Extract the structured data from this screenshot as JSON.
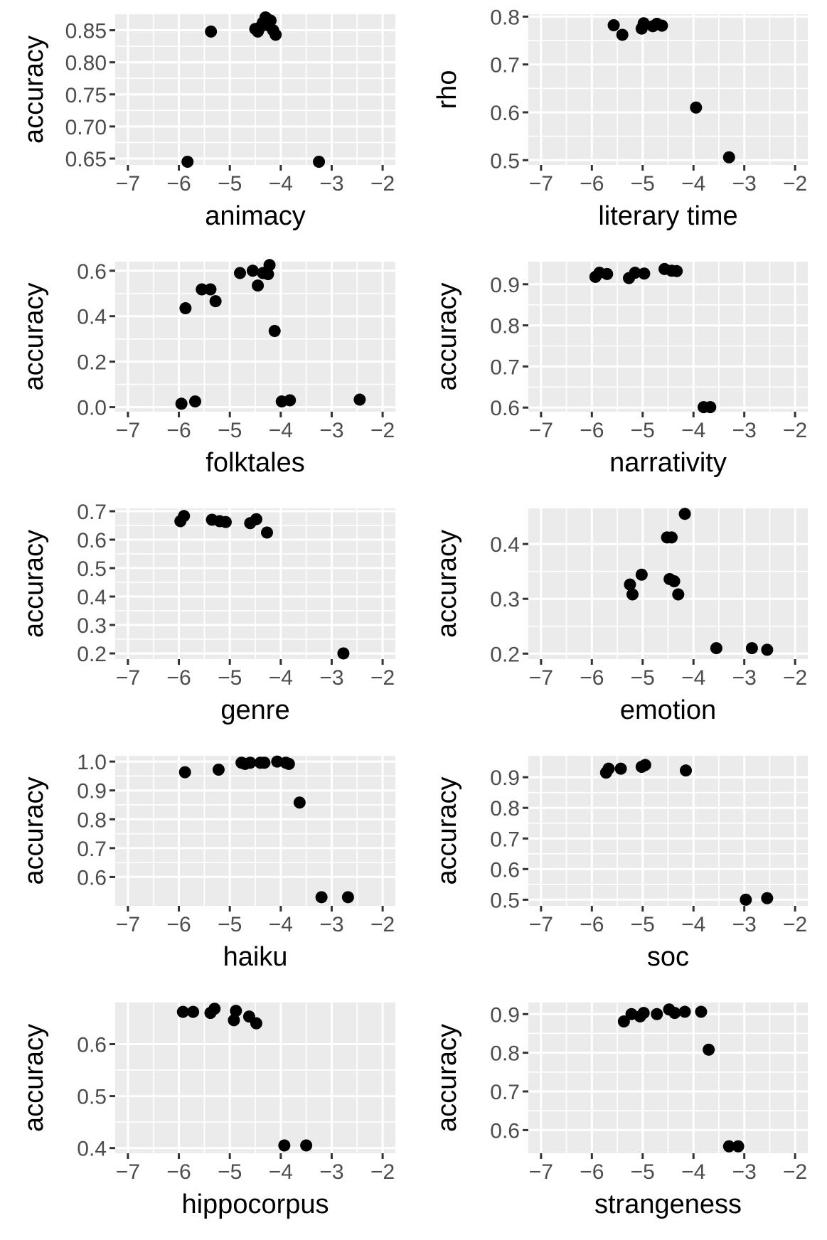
{
  "chart_data": [
    {
      "type": "scatter",
      "xlabel": "animacy",
      "ylabel": "accuracy",
      "xlim": [
        -7.25,
        -1.75
      ],
      "ylim": [
        0.64,
        0.875
      ],
      "xticks": [
        -7,
        -6,
        -5,
        -4,
        -3,
        -2
      ],
      "xtick_labels": [
        "−7",
        "−6",
        "−5",
        "−4",
        "−3",
        "−2"
      ],
      "yticks": [
        0.65,
        0.7,
        0.75,
        0.8,
        0.85
      ],
      "ytick_labels": [
        "0.65",
        "0.70",
        "0.75",
        "0.80",
        "0.85"
      ],
      "x": [
        -5.83,
        -5.37,
        -4.5,
        -4.45,
        -4.4,
        -4.35,
        -4.3,
        -4.27,
        -4.25,
        -4.2,
        -4.15,
        -4.1,
        -3.25
      ],
      "y": [
        0.645,
        0.848,
        0.852,
        0.848,
        0.855,
        0.862,
        0.87,
        0.868,
        0.858,
        0.865,
        0.85,
        0.843,
        0.645
      ]
    },
    {
      "type": "scatter",
      "xlabel": "literary time",
      "ylabel": "rho",
      "xlim": [
        -7.25,
        -1.75
      ],
      "ylim": [
        0.49,
        0.805
      ],
      "xticks": [
        -7,
        -6,
        -5,
        -4,
        -3,
        -2
      ],
      "xtick_labels": [
        "−7",
        "−6",
        "−5",
        "−4",
        "−3",
        "−2"
      ],
      "yticks": [
        0.5,
        0.6,
        0.7,
        0.8
      ],
      "ytick_labels": [
        "0.5",
        "0.6",
        "0.7",
        "0.8"
      ],
      "x": [
        -5.57,
        -5.4,
        -5.02,
        -4.98,
        -4.8,
        -4.72,
        -4.62
      ],
      "y": [
        0.782,
        0.762,
        0.775,
        0.786,
        0.78,
        0.785,
        0.781
      ],
      "x_extra": [
        -3.95,
        -3.3
      ],
      "y_extra": [
        0.61,
        0.506
      ]
    },
    {
      "type": "scatter",
      "xlabel": "folktales",
      "ylabel": "accuracy",
      "xlim": [
        -7.25,
        -1.75
      ],
      "ylim": [
        -0.02,
        0.64
      ],
      "xticks": [
        -7,
        -6,
        -5,
        -4,
        -3,
        -2
      ],
      "xtick_labels": [
        "−7",
        "−6",
        "−5",
        "−4",
        "−3",
        "−2"
      ],
      "yticks": [
        0.0,
        0.2,
        0.4,
        0.6
      ],
      "ytick_labels": [
        "0.0",
        "0.2",
        "0.4",
        "0.6"
      ],
      "x": [
        -5.95,
        -5.87,
        -5.68,
        -5.55,
        -5.38,
        -5.28,
        -4.8,
        -4.55,
        -4.45,
        -4.35,
        -4.25,
        -4.22,
        -4.12,
        -3.98,
        -3.82,
        -2.45
      ],
      "y": [
        0.015,
        0.435,
        0.025,
        0.518,
        0.518,
        0.466,
        0.59,
        0.6,
        0.535,
        0.59,
        0.585,
        0.625,
        0.335,
        0.025,
        0.03,
        0.033
      ]
    },
    {
      "type": "scatter",
      "xlabel": "narrativity",
      "ylabel": "accuracy",
      "xlim": [
        -7.25,
        -1.75
      ],
      "ylim": [
        0.59,
        0.955
      ],
      "xticks": [
        -7,
        -6,
        -5,
        -4,
        -3,
        -2
      ],
      "xtick_labels": [
        "−7",
        "−6",
        "−5",
        "−4",
        "−3",
        "−2"
      ],
      "yticks": [
        0.6,
        0.7,
        0.8,
        0.9
      ],
      "ytick_labels": [
        "0.6",
        "0.7",
        "0.8",
        "0.9"
      ],
      "x": [
        -5.93,
        -5.85,
        -5.7,
        -5.27,
        -5.15,
        -4.97,
        -4.57,
        -4.43,
        -4.33,
        -3.8,
        -3.67
      ],
      "y": [
        0.918,
        0.928,
        0.925,
        0.915,
        0.928,
        0.926,
        0.937,
        0.933,
        0.932,
        0.601,
        0.601
      ]
    },
    {
      "type": "scatter",
      "xlabel": "genre",
      "ylabel": "accuracy",
      "xlim": [
        -7.25,
        -1.75
      ],
      "ylim": [
        0.18,
        0.71
      ],
      "xticks": [
        -7,
        -6,
        -5,
        -4,
        -3,
        -2
      ],
      "xtick_labels": [
        "−7",
        "−6",
        "−5",
        "−4",
        "−3",
        "−2"
      ],
      "yticks": [
        0.2,
        0.3,
        0.4,
        0.5,
        0.6,
        0.7
      ],
      "ytick_labels": [
        "0.2",
        "0.3",
        "0.4",
        "0.5",
        "0.6",
        "0.7"
      ],
      "x": [
        -5.97,
        -5.9,
        -5.35,
        -5.2,
        -5.08,
        -4.6,
        -4.48,
        -4.27,
        -2.77
      ],
      "y": [
        0.665,
        0.683,
        0.67,
        0.665,
        0.662,
        0.658,
        0.672,
        0.625,
        0.2
      ]
    },
    {
      "type": "scatter",
      "xlabel": "emotion",
      "ylabel": "accuracy",
      "xlim": [
        -7.25,
        -1.75
      ],
      "ylim": [
        0.19,
        0.465
      ],
      "xticks": [
        -7,
        -6,
        -5,
        -4,
        -3,
        -2
      ],
      "xtick_labels": [
        "−7",
        "−6",
        "−5",
        "−4",
        "−3",
        "−2"
      ],
      "yticks": [
        0.2,
        0.3,
        0.4
      ],
      "ytick_labels": [
        "0.2",
        "0.3",
        "0.4"
      ],
      "x": [
        -5.25,
        -5.2,
        -5.02,
        -4.52,
        -4.47,
        -4.43,
        -4.38,
        -4.3,
        -4.17,
        -3.55,
        -2.85,
        -2.55
      ],
      "y": [
        0.326,
        0.308,
        0.344,
        0.412,
        0.336,
        0.412,
        0.332,
        0.308,
        0.455,
        0.21,
        0.21,
        0.207
      ]
    },
    {
      "type": "scatter",
      "xlabel": "haiku",
      "ylabel": "accuracy",
      "xlim": [
        -7.25,
        -1.75
      ],
      "ylim": [
        0.5,
        1.02
      ],
      "xticks": [
        -7,
        -6,
        -5,
        -4,
        -3,
        -2
      ],
      "xtick_labels": [
        "−7",
        "−6",
        "−5",
        "−4",
        "−3",
        "−2"
      ],
      "yticks": [
        0.6,
        0.7,
        0.8,
        0.9,
        1.0
      ],
      "ytick_labels": [
        "0.6",
        "0.7",
        "0.8",
        "0.9",
        "1.0"
      ],
      "x": [
        -5.88,
        -5.22,
        -4.77,
        -4.7,
        -4.6,
        -4.4,
        -4.32,
        -4.07,
        -3.9,
        -3.84,
        -3.63,
        -3.2,
        -2.68
      ],
      "y": [
        0.963,
        0.972,
        0.996,
        0.992,
        0.996,
        0.996,
        0.996,
        1.0,
        0.996,
        0.992,
        0.858,
        0.53,
        0.53
      ]
    },
    {
      "type": "scatter",
      "xlabel": "soc",
      "ylabel": "accuracy",
      "xlim": [
        -7.25,
        -1.75
      ],
      "ylim": [
        0.48,
        0.97
      ],
      "xticks": [
        -7,
        -6,
        -5,
        -4,
        -3,
        -2
      ],
      "xtick_labels": [
        "−7",
        "−6",
        "−5",
        "−4",
        "−3",
        "−2"
      ],
      "yticks": [
        0.5,
        0.6,
        0.7,
        0.8,
        0.9
      ],
      "ytick_labels": [
        "0.5",
        "0.6",
        "0.7",
        "0.8",
        "0.9"
      ],
      "x": [
        -5.72,
        -5.67,
        -5.43,
        -5.02,
        -4.95,
        -4.15,
        -2.97,
        -2.55
      ],
      "y": [
        0.915,
        0.928,
        0.928,
        0.934,
        0.94,
        0.922,
        0.5,
        0.505
      ]
    },
    {
      "type": "scatter",
      "xlabel": "hippocorpus",
      "ylabel": "accuracy",
      "xlim": [
        -7.25,
        -1.75
      ],
      "ylim": [
        0.39,
        0.68
      ],
      "xticks": [
        -7,
        -6,
        -5,
        -4,
        -3,
        -2
      ],
      "xtick_labels": [
        "−7",
        "−6",
        "−5",
        "−4",
        "−3",
        "−2"
      ],
      "yticks": [
        0.4,
        0.5,
        0.6
      ],
      "ytick_labels": [
        "0.4",
        "0.5",
        "0.6"
      ],
      "x": [
        -5.92,
        -5.72,
        -5.38,
        -5.3,
        -4.92,
        -4.88,
        -4.62,
        -4.48,
        -3.93,
        -3.5
      ],
      "y": [
        0.662,
        0.662,
        0.66,
        0.668,
        0.646,
        0.664,
        0.653,
        0.64,
        0.405,
        0.405
      ]
    },
    {
      "type": "scatter",
      "xlabel": "strangeness",
      "ylabel": "accuracy",
      "xlim": [
        -7.25,
        -1.75
      ],
      "ylim": [
        0.54,
        0.93
      ],
      "xticks": [
        -7,
        -6,
        -5,
        -4,
        -3,
        -2
      ],
      "xtick_labels": [
        "−7",
        "−6",
        "−5",
        "−4",
        "−3",
        "−2"
      ],
      "yticks": [
        0.6,
        0.7,
        0.8,
        0.9
      ],
      "ytick_labels": [
        "0.6",
        "0.7",
        "0.8",
        "0.9"
      ],
      "x": [
        -5.37,
        -5.22,
        -5.05,
        -4.98,
        -4.72,
        -4.48,
        -4.37,
        -4.17,
        -3.85,
        -3.7,
        -3.3,
        -3.12
      ],
      "y": [
        0.881,
        0.9,
        0.894,
        0.903,
        0.9,
        0.912,
        0.903,
        0.906,
        0.906,
        0.808,
        0.558,
        0.558
      ]
    }
  ]
}
